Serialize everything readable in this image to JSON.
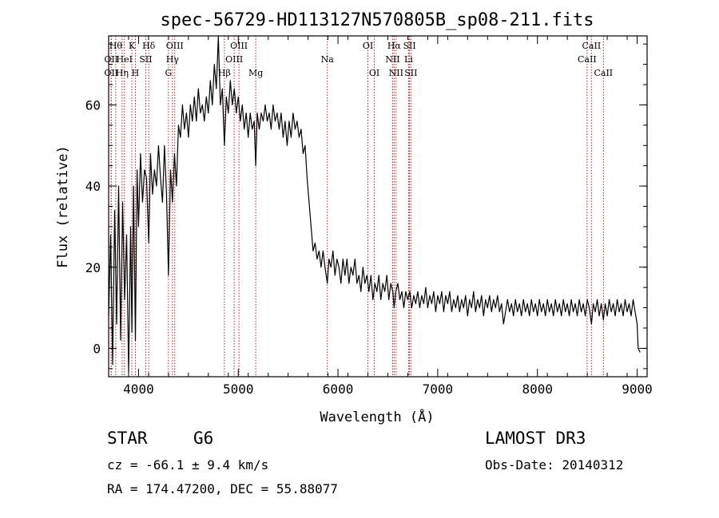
{
  "chart_data": {
    "type": "line",
    "title": "spec-56729-HD113127N570805B_sp08-211.fits",
    "xlabel": "Wavelength (Å)",
    "ylabel": "Flux (relative)",
    "xlim": [
      3700,
      9100
    ],
    "ylim": [
      -7,
      77
    ],
    "x_ticks": [
      "4000",
      "5000",
      "6000",
      "7000",
      "8000",
      "9000"
    ],
    "y_ticks": [
      "0",
      "20",
      "40",
      "60"
    ],
    "grid": false,
    "series": [
      {
        "points": [
          [
            3700,
            8
          ],
          [
            3720,
            28
          ],
          [
            3740,
            -4
          ],
          [
            3760,
            34
          ],
          [
            3780,
            6
          ],
          [
            3800,
            40
          ],
          [
            3820,
            2
          ],
          [
            3840,
            36
          ],
          [
            3860,
            12
          ],
          [
            3880,
            28
          ],
          [
            3900,
            -6
          ],
          [
            3920,
            30
          ],
          [
            3933,
            4
          ],
          [
            3950,
            40
          ],
          [
            3968,
            2
          ],
          [
            3985,
            44
          ],
          [
            4000,
            30
          ],
          [
            4020,
            48
          ],
          [
            4040,
            36
          ],
          [
            4060,
            44
          ],
          [
            4080,
            42
          ],
          [
            4102,
            26
          ],
          [
            4120,
            48
          ],
          [
            4140,
            38
          ],
          [
            4160,
            44
          ],
          [
            4180,
            40
          ],
          [
            4200,
            50
          ],
          [
            4220,
            42
          ],
          [
            4240,
            36
          ],
          [
            4260,
            50
          ],
          [
            4280,
            38
          ],
          [
            4300,
            18
          ],
          [
            4320,
            44
          ],
          [
            4340,
            36
          ],
          [
            4360,
            48
          ],
          [
            4380,
            40
          ],
          [
            4400,
            55
          ],
          [
            4420,
            52
          ],
          [
            4440,
            60
          ],
          [
            4460,
            54
          ],
          [
            4480,
            58
          ],
          [
            4500,
            52
          ],
          [
            4520,
            60
          ],
          [
            4540,
            56
          ],
          [
            4560,
            62
          ],
          [
            4580,
            56
          ],
          [
            4600,
            64
          ],
          [
            4620,
            58
          ],
          [
            4640,
            60
          ],
          [
            4660,
            56
          ],
          [
            4680,
            62
          ],
          [
            4700,
            58
          ],
          [
            4720,
            66
          ],
          [
            4740,
            60
          ],
          [
            4760,
            70
          ],
          [
            4780,
            64
          ],
          [
            4800,
            78
          ],
          [
            4820,
            60
          ],
          [
            4840,
            64
          ],
          [
            4861,
            50
          ],
          [
            4880,
            62
          ],
          [
            4900,
            58
          ],
          [
            4920,
            66
          ],
          [
            4940,
            60
          ],
          [
            4960,
            64
          ],
          [
            4980,
            58
          ],
          [
            5000,
            62
          ],
          [
            5020,
            56
          ],
          [
            5040,
            60
          ],
          [
            5060,
            54
          ],
          [
            5080,
            58
          ],
          [
            5100,
            52
          ],
          [
            5120,
            58
          ],
          [
            5140,
            54
          ],
          [
            5160,
            56
          ],
          [
            5175,
            45
          ],
          [
            5190,
            58
          ],
          [
            5210,
            54
          ],
          [
            5230,
            58
          ],
          [
            5250,
            56
          ],
          [
            5270,
            60
          ],
          [
            5290,
            56
          ],
          [
            5310,
            58
          ],
          [
            5330,
            54
          ],
          [
            5350,
            60
          ],
          [
            5370,
            56
          ],
          [
            5390,
            58
          ],
          [
            5410,
            54
          ],
          [
            5430,
            58
          ],
          [
            5450,
            52
          ],
          [
            5470,
            56
          ],
          [
            5490,
            50
          ],
          [
            5510,
            56
          ],
          [
            5530,
            52
          ],
          [
            5550,
            58
          ],
          [
            5570,
            54
          ],
          [
            5590,
            56
          ],
          [
            5610,
            52
          ],
          [
            5630,
            54
          ],
          [
            5650,
            48
          ],
          [
            5670,
            50
          ],
          [
            5690,
            42
          ],
          [
            5710,
            36
          ],
          [
            5730,
            30
          ],
          [
            5750,
            24
          ],
          [
            5770,
            26
          ],
          [
            5790,
            22
          ],
          [
            5810,
            24
          ],
          [
            5830,
            20
          ],
          [
            5850,
            24
          ],
          [
            5870,
            20
          ],
          [
            5893,
            16
          ],
          [
            5910,
            22
          ],
          [
            5930,
            20
          ],
          [
            5950,
            24
          ],
          [
            5970,
            18
          ],
          [
            5990,
            22
          ],
          [
            6010,
            20
          ],
          [
            6030,
            16
          ],
          [
            6050,
            22
          ],
          [
            6070,
            18
          ],
          [
            6090,
            22
          ],
          [
            6110,
            16
          ],
          [
            6130,
            20
          ],
          [
            6150,
            18
          ],
          [
            6170,
            22
          ],
          [
            6190,
            16
          ],
          [
            6210,
            18
          ],
          [
            6230,
            14
          ],
          [
            6250,
            20
          ],
          [
            6270,
            16
          ],
          [
            6290,
            18
          ],
          [
            6310,
            14
          ],
          [
            6330,
            18
          ],
          [
            6350,
            12
          ],
          [
            6370,
            16
          ],
          [
            6390,
            14
          ],
          [
            6410,
            18
          ],
          [
            6430,
            12
          ],
          [
            6450,
            16
          ],
          [
            6470,
            14
          ],
          [
            6490,
            18
          ],
          [
            6510,
            12
          ],
          [
            6530,
            16
          ],
          [
            6550,
            14
          ],
          [
            6563,
            10
          ],
          [
            6580,
            14
          ],
          [
            6600,
            16
          ],
          [
            6620,
            12
          ],
          [
            6640,
            14
          ],
          [
            6660,
            10
          ],
          [
            6680,
            14
          ],
          [
            6700,
            12
          ],
          [
            6720,
            14
          ],
          [
            6740,
            10
          ],
          [
            6760,
            13
          ],
          [
            6780,
            11
          ],
          [
            6800,
            14
          ],
          [
            6820,
            10
          ],
          [
            6840,
            13
          ],
          [
            6860,
            11
          ],
          [
            6880,
            15
          ],
          [
            6900,
            10
          ],
          [
            6920,
            13
          ],
          [
            6940,
            11
          ],
          [
            6960,
            14
          ],
          [
            6980,
            9
          ],
          [
            7000,
            13
          ],
          [
            7020,
            11
          ],
          [
            7040,
            14
          ],
          [
            7060,
            9
          ],
          [
            7080,
            13
          ],
          [
            7100,
            11
          ],
          [
            7120,
            14
          ],
          [
            7140,
            9
          ],
          [
            7160,
            12
          ],
          [
            7180,
            10
          ],
          [
            7200,
            13
          ],
          [
            7220,
            9
          ],
          [
            7240,
            12
          ],
          [
            7260,
            10
          ],
          [
            7280,
            13
          ],
          [
            7300,
            8
          ],
          [
            7320,
            12
          ],
          [
            7340,
            10
          ],
          [
            7360,
            14
          ],
          [
            7380,
            9
          ],
          [
            7400,
            12
          ],
          [
            7420,
            10
          ],
          [
            7440,
            13
          ],
          [
            7460,
            8
          ],
          [
            7480,
            12
          ],
          [
            7500,
            10
          ],
          [
            7520,
            13
          ],
          [
            7540,
            9
          ],
          [
            7560,
            12
          ],
          [
            7580,
            10
          ],
          [
            7600,
            13
          ],
          [
            7620,
            9
          ],
          [
            7640,
            11
          ],
          [
            7660,
            6
          ],
          [
            7680,
            9
          ],
          [
            7700,
            12
          ],
          [
            7720,
            9
          ],
          [
            7740,
            11
          ],
          [
            7760,
            8
          ],
          [
            7780,
            12
          ],
          [
            7800,
            9
          ],
          [
            7820,
            11
          ],
          [
            7840,
            8
          ],
          [
            7860,
            12
          ],
          [
            7880,
            9
          ],
          [
            7900,
            11
          ],
          [
            7920,
            8
          ],
          [
            7940,
            12
          ],
          [
            7960,
            9
          ],
          [
            7980,
            11
          ],
          [
            8000,
            8
          ],
          [
            8020,
            12
          ],
          [
            8040,
            9
          ],
          [
            8060,
            11
          ],
          [
            8080,
            8
          ],
          [
            8100,
            12
          ],
          [
            8120,
            9
          ],
          [
            8140,
            11
          ],
          [
            8160,
            8
          ],
          [
            8180,
            12
          ],
          [
            8200,
            9
          ],
          [
            8220,
            11
          ],
          [
            8240,
            8
          ],
          [
            8260,
            12
          ],
          [
            8280,
            9
          ],
          [
            8300,
            11
          ],
          [
            8320,
            8
          ],
          [
            8340,
            12
          ],
          [
            8360,
            9
          ],
          [
            8380,
            11
          ],
          [
            8400,
            8
          ],
          [
            8420,
            12
          ],
          [
            8440,
            9
          ],
          [
            8460,
            11
          ],
          [
            8480,
            8
          ],
          [
            8500,
            12
          ],
          [
            8520,
            10
          ],
          [
            8542,
            6
          ],
          [
            8560,
            11
          ],
          [
            8580,
            9
          ],
          [
            8600,
            12
          ],
          [
            8620,
            8
          ],
          [
            8640,
            11
          ],
          [
            8662,
            7
          ],
          [
            8680,
            11
          ],
          [
            8700,
            8
          ],
          [
            8720,
            12
          ],
          [
            8740,
            9
          ],
          [
            8760,
            11
          ],
          [
            8780,
            8
          ],
          [
            8800,
            12
          ],
          [
            8820,
            9
          ],
          [
            8840,
            11
          ],
          [
            8860,
            8
          ],
          [
            8880,
            12
          ],
          [
            8900,
            9
          ],
          [
            8920,
            11
          ],
          [
            8940,
            8
          ],
          [
            8960,
            12
          ],
          [
            8980,
            9
          ],
          [
            9000,
            6
          ],
          [
            9010,
            0
          ],
          [
            9030,
            -1
          ]
        ]
      }
    ],
    "lines": [
      {
        "wl": 3771,
        "labels": [
          "Hθ"
        ],
        "row": 0
      },
      {
        "wl": 3726,
        "labels": [
          "OII"
        ],
        "row": 1
      },
      {
        "wl": 3726,
        "labels": [
          "OII"
        ],
        "row": 2
      },
      {
        "wl": 3835,
        "labels": [
          "Hη"
        ],
        "row": 2
      },
      {
        "wl": 3858,
        "labels": [
          "HeI"
        ],
        "row": 1
      },
      {
        "wl": 3933,
        "labels": [
          "K"
        ],
        "row": 0
      },
      {
        "wl": 3968,
        "labels": [
          "H"
        ],
        "row": 2
      },
      {
        "wl": 4072,
        "labels": [
          "SII"
        ],
        "row": 1
      },
      {
        "wl": 4102,
        "labels": [
          "Hδ"
        ],
        "row": 0
      },
      {
        "wl": 4300,
        "labels": [
          "G"
        ],
        "row": 2
      },
      {
        "wl": 4340,
        "labels": [
          "Hγ"
        ],
        "row": 1
      },
      {
        "wl": 4363,
        "labels": [
          "OIII"
        ],
        "row": 0
      },
      {
        "wl": 4861,
        "labels": [
          "Hβ"
        ],
        "row": 2
      },
      {
        "wl": 4959,
        "labels": [
          "OIII"
        ],
        "row": 1
      },
      {
        "wl": 5007,
        "labels": [
          "OIII"
        ],
        "row": 0
      },
      {
        "wl": 5175,
        "labels": [
          "Mg"
        ],
        "row": 2
      },
      {
        "wl": 5893,
        "labels": [
          "Na"
        ],
        "row": 1
      },
      {
        "wl": 6300,
        "labels": [
          "OI"
        ],
        "row": 0
      },
      {
        "wl": 6364,
        "labels": [
          "OI"
        ],
        "row": 2
      },
      {
        "wl": 6548,
        "labels": [
          "NII"
        ],
        "row": 1
      },
      {
        "wl": 6563,
        "labels": [
          "Hα"
        ],
        "row": 0
      },
      {
        "wl": 6583,
        "labels": [
          "NII"
        ],
        "row": 2
      },
      {
        "wl": 6708,
        "labels": [
          "Li"
        ],
        "row": 1
      },
      {
        "wl": 6717,
        "labels": [
          "SII"
        ],
        "row": 0
      },
      {
        "wl": 6731,
        "labels": [
          "SII"
        ],
        "row": 2
      },
      {
        "wl": 8498,
        "labels": [
          "CaII"
        ],
        "row": 1
      },
      {
        "wl": 8542,
        "labels": [
          "CaII"
        ],
        "row": 0
      },
      {
        "wl": 8662,
        "labels": [
          "CaII"
        ],
        "row": 2
      }
    ],
    "colors": {
      "spectrum": "#000000",
      "lines": "#b22222",
      "axes": "#000000"
    }
  },
  "info": {
    "class": "STAR",
    "subclass": "G6",
    "survey": "LAMOST DR3",
    "cz": "cz = -66.1 ± 9.4 km/s",
    "obsdate": "Obs-Date: 20140312",
    "radec": "RA = 174.47200, DEC =  55.88077"
  }
}
